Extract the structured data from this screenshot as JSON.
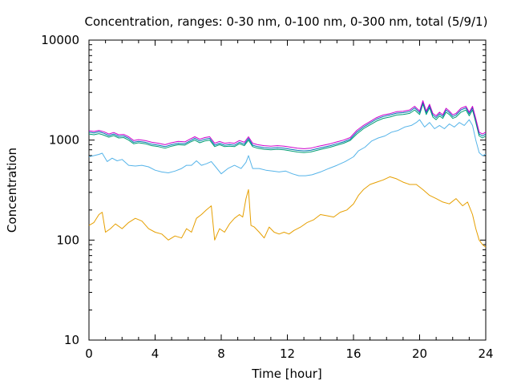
{
  "chart_data": {
    "type": "line",
    "title": "Concentration, ranges: 0-30 nm, 0-100 nm, 0-300 nm, total (5/9/1)",
    "xlabel": "Time [hour]",
    "ylabel": "Concentration",
    "xlim": [
      0,
      24
    ],
    "ylim": [
      10,
      10000
    ],
    "y_scale": "log",
    "grid": false,
    "x_ticks": [
      "0",
      "4",
      "8",
      "12",
      "16",
      "20",
      "24"
    ],
    "y_ticks": [
      "10",
      "100",
      "1000",
      "10000"
    ],
    "series": [
      {
        "color": "#e69f00",
        "x": [
          0,
          0.3,
          0.6,
          0.8,
          1.0,
          1.3,
          1.6,
          2.0,
          2.4,
          2.8,
          3.2,
          3.6,
          4.0,
          4.4,
          4.8,
          5.2,
          5.6,
          5.9,
          6.2,
          6.5,
          6.8,
          7.1,
          7.4,
          7.6,
          7.9,
          8.2,
          8.5,
          8.8,
          9.1,
          9.3,
          9.5,
          9.65,
          9.8,
          10.0,
          10.3,
          10.6,
          10.9,
          11.2,
          11.5,
          11.8,
          12.1,
          12.4,
          12.8,
          13.2,
          13.6,
          14.0,
          14.4,
          14.8,
          15.2,
          15.6,
          16.0,
          16.3,
          16.6,
          17.0,
          17.4,
          17.8,
          18.2,
          18.6,
          19.0,
          19.4,
          19.8,
          20.2,
          20.6,
          21.0,
          21.4,
          21.8,
          22.2,
          22.6,
          22.9,
          23.2,
          23.4,
          23.6,
          23.8,
          24.0
        ],
        "values": [
          140,
          150,
          180,
          190,
          120,
          130,
          145,
          130,
          150,
          165,
          155,
          130,
          120,
          115,
          100,
          110,
          105,
          130,
          120,
          165,
          180,
          200,
          220,
          100,
          130,
          120,
          145,
          165,
          180,
          170,
          260,
          320,
          140,
          135,
          120,
          105,
          135,
          120,
          115,
          120,
          115,
          125,
          135,
          150,
          160,
          180,
          175,
          170,
          190,
          200,
          230,
          280,
          320,
          360,
          380,
          400,
          430,
          410,
          380,
          360,
          360,
          320,
          280,
          260,
          240,
          230,
          260,
          220,
          240,
          180,
          130,
          100,
          90,
          85
        ]
      },
      {
        "color": "#56b4e9",
        "x": [
          0,
          0.3,
          0.6,
          0.8,
          1.1,
          1.4,
          1.7,
          2.0,
          2.4,
          2.8,
          3.2,
          3.6,
          4.0,
          4.4,
          4.8,
          5.2,
          5.6,
          5.9,
          6.2,
          6.5,
          6.8,
          7.1,
          7.4,
          7.7,
          8.0,
          8.4,
          8.8,
          9.2,
          9.5,
          9.65,
          9.9,
          10.3,
          10.7,
          11.1,
          11.5,
          11.9,
          12.3,
          12.7,
          13.1,
          13.5,
          14.0,
          14.5,
          15.0,
          15.5,
          16.0,
          16.3,
          16.7,
          17.1,
          17.5,
          17.9,
          18.3,
          18.7,
          19.1,
          19.5,
          19.8,
          20.0,
          20.3,
          20.6,
          20.9,
          21.2,
          21.5,
          21.8,
          22.1,
          22.4,
          22.7,
          23.0,
          23.2,
          23.4,
          23.6,
          23.8,
          24.0
        ],
        "values": [
          680,
          700,
          720,
          740,
          610,
          660,
          620,
          640,
          560,
          550,
          560,
          540,
          500,
          480,
          470,
          490,
          520,
          560,
          560,
          620,
          560,
          580,
          610,
          530,
          460,
          520,
          560,
          520,
          600,
          700,
          520,
          520,
          500,
          490,
          480,
          490,
          460,
          440,
          440,
          450,
          480,
          520,
          560,
          610,
          680,
          780,
          850,
          980,
          1050,
          1100,
          1200,
          1250,
          1350,
          1400,
          1500,
          1600,
          1350,
          1500,
          1300,
          1400,
          1300,
          1450,
          1350,
          1500,
          1400,
          1600,
          1400,
          1000,
          750,
          700,
          720
        ]
      },
      {
        "color": "#009e73",
        "x": [
          0,
          0.3,
          0.6,
          0.9,
          1.2,
          1.5,
          1.8,
          2.1,
          2.4,
          2.7,
          3.0,
          3.4,
          3.8,
          4.2,
          4.6,
          5.0,
          5.4,
          5.8,
          6.1,
          6.4,
          6.7,
          7.0,
          7.3,
          7.6,
          7.9,
          8.2,
          8.5,
          8.8,
          9.1,
          9.4,
          9.65,
          9.9,
          10.2,
          10.6,
          11.0,
          11.4,
          11.8,
          12.2,
          12.6,
          13.0,
          13.4,
          13.8,
          14.2,
          14.6,
          15.0,
          15.4,
          15.8,
          16.2,
          16.6,
          17.0,
          17.4,
          17.8,
          18.2,
          18.6,
          19.0,
          19.4,
          19.7,
          20.0,
          20.2,
          20.4,
          20.6,
          20.8,
          21.0,
          21.2,
          21.4,
          21.6,
          21.8,
          22.0,
          22.2,
          22.5,
          22.8,
          23.0,
          23.2,
          23.4,
          23.6,
          23.8,
          24.0
        ],
        "values": [
          1150,
          1130,
          1160,
          1120,
          1070,
          1110,
          1050,
          1060,
          1000,
          920,
          940,
          920,
          880,
          860,
          830,
          870,
          900,
          890,
          950,
          1000,
          940,
          980,
          1000,
          860,
          900,
          860,
          870,
          860,
          920,
          880,
          1000,
          860,
          830,
          810,
          800,
          810,
          800,
          780,
          760,
          750,
          760,
          790,
          820,
          850,
          890,
          930,
          990,
          1150,
          1300,
          1420,
          1550,
          1650,
          1700,
          1780,
          1800,
          1850,
          2000,
          1800,
          2300,
          1800,
          2100,
          1700,
          1600,
          1750,
          1650,
          1900,
          1800,
          1650,
          1700,
          1900,
          2000,
          1750,
          2000,
          1500,
          1100,
          1050,
          1100
        ]
      },
      {
        "color": "#0072b2",
        "x": [
          0,
          0.3,
          0.6,
          0.9,
          1.2,
          1.5,
          1.8,
          2.1,
          2.4,
          2.7,
          3.0,
          3.4,
          3.8,
          4.2,
          4.6,
          5.0,
          5.4,
          5.8,
          6.1,
          6.4,
          6.7,
          7.0,
          7.3,
          7.6,
          7.9,
          8.2,
          8.5,
          8.8,
          9.1,
          9.4,
          9.65,
          9.9,
          10.2,
          10.6,
          11.0,
          11.4,
          11.8,
          12.2,
          12.6,
          13.0,
          13.4,
          13.8,
          14.2,
          14.6,
          15.0,
          15.4,
          15.8,
          16.2,
          16.6,
          17.0,
          17.4,
          17.8,
          18.2,
          18.6,
          19.0,
          19.4,
          19.7,
          20.0,
          20.2,
          20.4,
          20.6,
          20.8,
          21.0,
          21.2,
          21.4,
          21.6,
          21.8,
          22.0,
          22.2,
          22.5,
          22.8,
          23.0,
          23.2,
          23.4,
          23.6,
          23.8,
          24.0
        ],
        "values": [
          1200,
          1180,
          1210,
          1170,
          1110,
          1150,
          1090,
          1100,
          1040,
          950,
          970,
          950,
          910,
          890,
          860,
          900,
          930,
          920,
          980,
          1040,
          980,
          1020,
          1040,
          890,
          930,
          890,
          900,
          890,
          950,
          910,
          1040,
          890,
          860,
          840,
          830,
          840,
          830,
          810,
          790,
          780,
          790,
          820,
          850,
          880,
          920,
          960,
          1020,
          1200,
          1350,
          1480,
          1620,
          1720,
          1780,
          1860,
          1880,
          1930,
          2100,
          1880,
          2400,
          1880,
          2200,
          1780,
          1680,
          1830,
          1720,
          2000,
          1880,
          1720,
          1780,
          2000,
          2100,
          1830,
          2100,
          1580,
          1150,
          1100,
          1150
        ]
      },
      {
        "color": "#cc00cc",
        "x": [
          0,
          0.3,
          0.6,
          0.9,
          1.2,
          1.5,
          1.8,
          2.1,
          2.4,
          2.7,
          3.0,
          3.4,
          3.8,
          4.2,
          4.6,
          5.0,
          5.4,
          5.8,
          6.1,
          6.4,
          6.7,
          7.0,
          7.3,
          7.6,
          7.9,
          8.2,
          8.5,
          8.8,
          9.1,
          9.4,
          9.65,
          9.9,
          10.2,
          10.6,
          11.0,
          11.4,
          11.8,
          12.2,
          12.6,
          13.0,
          13.4,
          13.8,
          14.2,
          14.6,
          15.0,
          15.4,
          15.8,
          16.2,
          16.6,
          17.0,
          17.4,
          17.8,
          18.2,
          18.6,
          19.0,
          19.4,
          19.7,
          20.0,
          20.2,
          20.4,
          20.6,
          20.8,
          21.0,
          21.2,
          21.4,
          21.6,
          21.8,
          22.0,
          22.2,
          22.5,
          22.8,
          23.0,
          23.2,
          23.4,
          23.6,
          23.8,
          24.0
        ],
        "values": [
          1240,
          1220,
          1250,
          1210,
          1150,
          1190,
          1130,
          1140,
          1080,
          990,
          1010,
          990,
          950,
          930,
          900,
          940,
          970,
          960,
          1020,
          1080,
          1020,
          1060,
          1080,
          930,
          970,
          930,
          940,
          930,
          990,
          950,
          1080,
          930,
          900,
          880,
          870,
          880,
          870,
          850,
          830,
          820,
          830,
          860,
          890,
          920,
          960,
          1000,
          1060,
          1250,
          1400,
          1530,
          1680,
          1780,
          1840,
          1920,
          1940,
          2000,
          2180,
          1950,
          2480,
          1950,
          2280,
          1850,
          1750,
          1900,
          1790,
          2080,
          1950,
          1790,
          1850,
          2080,
          2180,
          1900,
          2180,
          1640,
          1200,
          1150,
          1200
        ]
      }
    ]
  }
}
